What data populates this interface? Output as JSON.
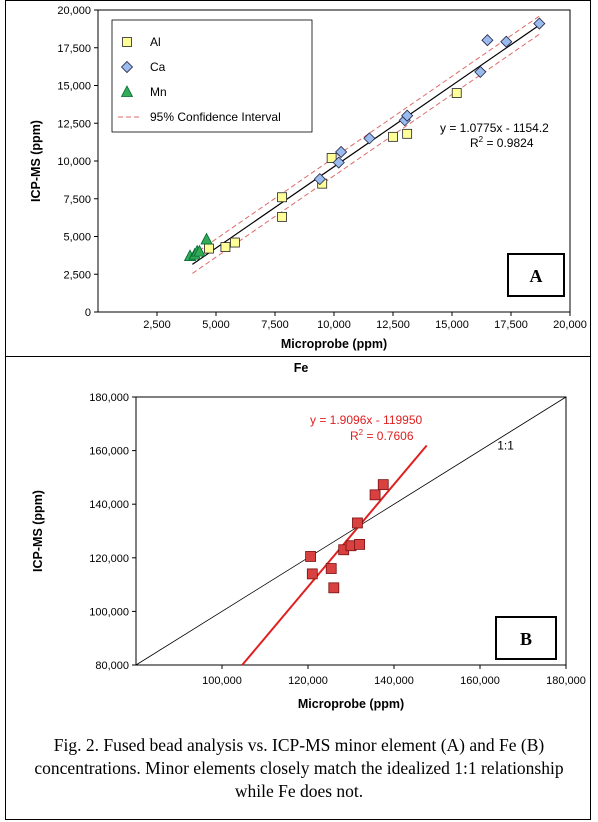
{
  "chart_data": [
    {
      "id": "A",
      "type": "scatter",
      "xlabel": "Microprobe (ppm)",
      "ylabel": "ICP-MS (ppm)",
      "xlim": [
        0,
        20000
      ],
      "ylim": [
        0,
        20000
      ],
      "xticks": [
        2500,
        5000,
        7500,
        10000,
        12500,
        15000,
        17500,
        20000
      ],
      "xtick_labels": [
        "2,500",
        "5,000",
        "7,500",
        "10,000",
        "12,500",
        "15,000",
        "17,500",
        "20,000"
      ],
      "yticks": [
        0,
        2500,
        5000,
        7500,
        10000,
        12500,
        15000,
        17500,
        20000
      ],
      "ytick_labels": [
        "0",
        "2,500",
        "5,000",
        "7,500",
        "10,000",
        "12,500",
        "15,000",
        "17,500",
        "20,000"
      ],
      "series": [
        {
          "name": "Al",
          "marker": "square",
          "color": "#ffff99",
          "points": [
            [
              4700,
              4200
            ],
            [
              5400,
              4300
            ],
            [
              5800,
              4600
            ],
            [
              7800,
              6300
            ],
            [
              7800,
              7600
            ],
            [
              9500,
              8500
            ],
            [
              9900,
              10200
            ],
            [
              12500,
              11600
            ],
            [
              13100,
              11800
            ],
            [
              15200,
              14500
            ]
          ]
        },
        {
          "name": "Ca",
          "marker": "diamond",
          "color": "#99bbee",
          "points": [
            [
              9400,
              8800
            ],
            [
              10200,
              9900
            ],
            [
              10300,
              10600
            ],
            [
              11500,
              11500
            ],
            [
              13000,
              12700
            ],
            [
              13100,
              13000
            ],
            [
              16200,
              15900
            ],
            [
              16500,
              18000
            ],
            [
              17300,
              17900
            ],
            [
              18700,
              19100
            ]
          ]
        },
        {
          "name": "Mn",
          "marker": "triangle",
          "color": "#33aa55",
          "points": [
            [
              3900,
              3700
            ],
            [
              4100,
              3800
            ],
            [
              4200,
              4000
            ],
            [
              4300,
              4000
            ],
            [
              4600,
              4800
            ]
          ]
        }
      ],
      "legend_extra": "95% Confidence Interval",
      "legend_position": "top-left",
      "equation": "y = 1.0775x - 1154.2",
      "r2_text": "R",
      "r2_value": " = 0.9824",
      "fit": {
        "slope": 1.0775,
        "intercept": -1154.2,
        "x_range": [
          4000,
          18700
        ]
      },
      "ci_offset": 600,
      "panel_label": "A"
    },
    {
      "id": "B",
      "type": "scatter",
      "title": "Fe",
      "xlabel": "Microprobe (ppm)",
      "ylabel": "ICP-MS (ppm)",
      "xlim": [
        80000,
        180000
      ],
      "ylim": [
        80000,
        180000
      ],
      "xticks": [
        100000,
        120000,
        140000,
        160000,
        180000
      ],
      "xtick_labels": [
        "100,000",
        "120,000",
        "140,000",
        "160,000",
        "180,000"
      ],
      "yticks": [
        80000,
        100000,
        120000,
        140000,
        160000,
        180000
      ],
      "ytick_labels": [
        "80,000",
        "100,000",
        "120,000",
        "140,000",
        "160,000",
        "180,000"
      ],
      "series": [
        {
          "name": "Fe",
          "marker": "square",
          "color": "#d94040",
          "points": [
            [
              120600,
              120500
            ],
            [
              121000,
              114000
            ],
            [
              125400,
              116000
            ],
            [
              126000,
              108800
            ],
            [
              128300,
              123000
            ],
            [
              130000,
              124500
            ],
            [
              131500,
              133000
            ],
            [
              132000,
              125000
            ],
            [
              135600,
              143500
            ],
            [
              137500,
              147300
            ]
          ]
        }
      ],
      "equation": "y = 1.9096x - 119950",
      "r2_text": "R",
      "r2_value": " = 0.7606",
      "fit": {
        "slope": 1.9096,
        "intercept": -119950,
        "x_range": [
          104700,
          147600
        ]
      },
      "one_to_one_label": "1:1",
      "panel_label": "B"
    }
  ],
  "caption": "Fig. 2. Fused bead analysis vs. ICP-MS minor element (A) and Fe (B) concentrations. Minor elements closely match the idealized 1:1 relationship while Fe does not."
}
